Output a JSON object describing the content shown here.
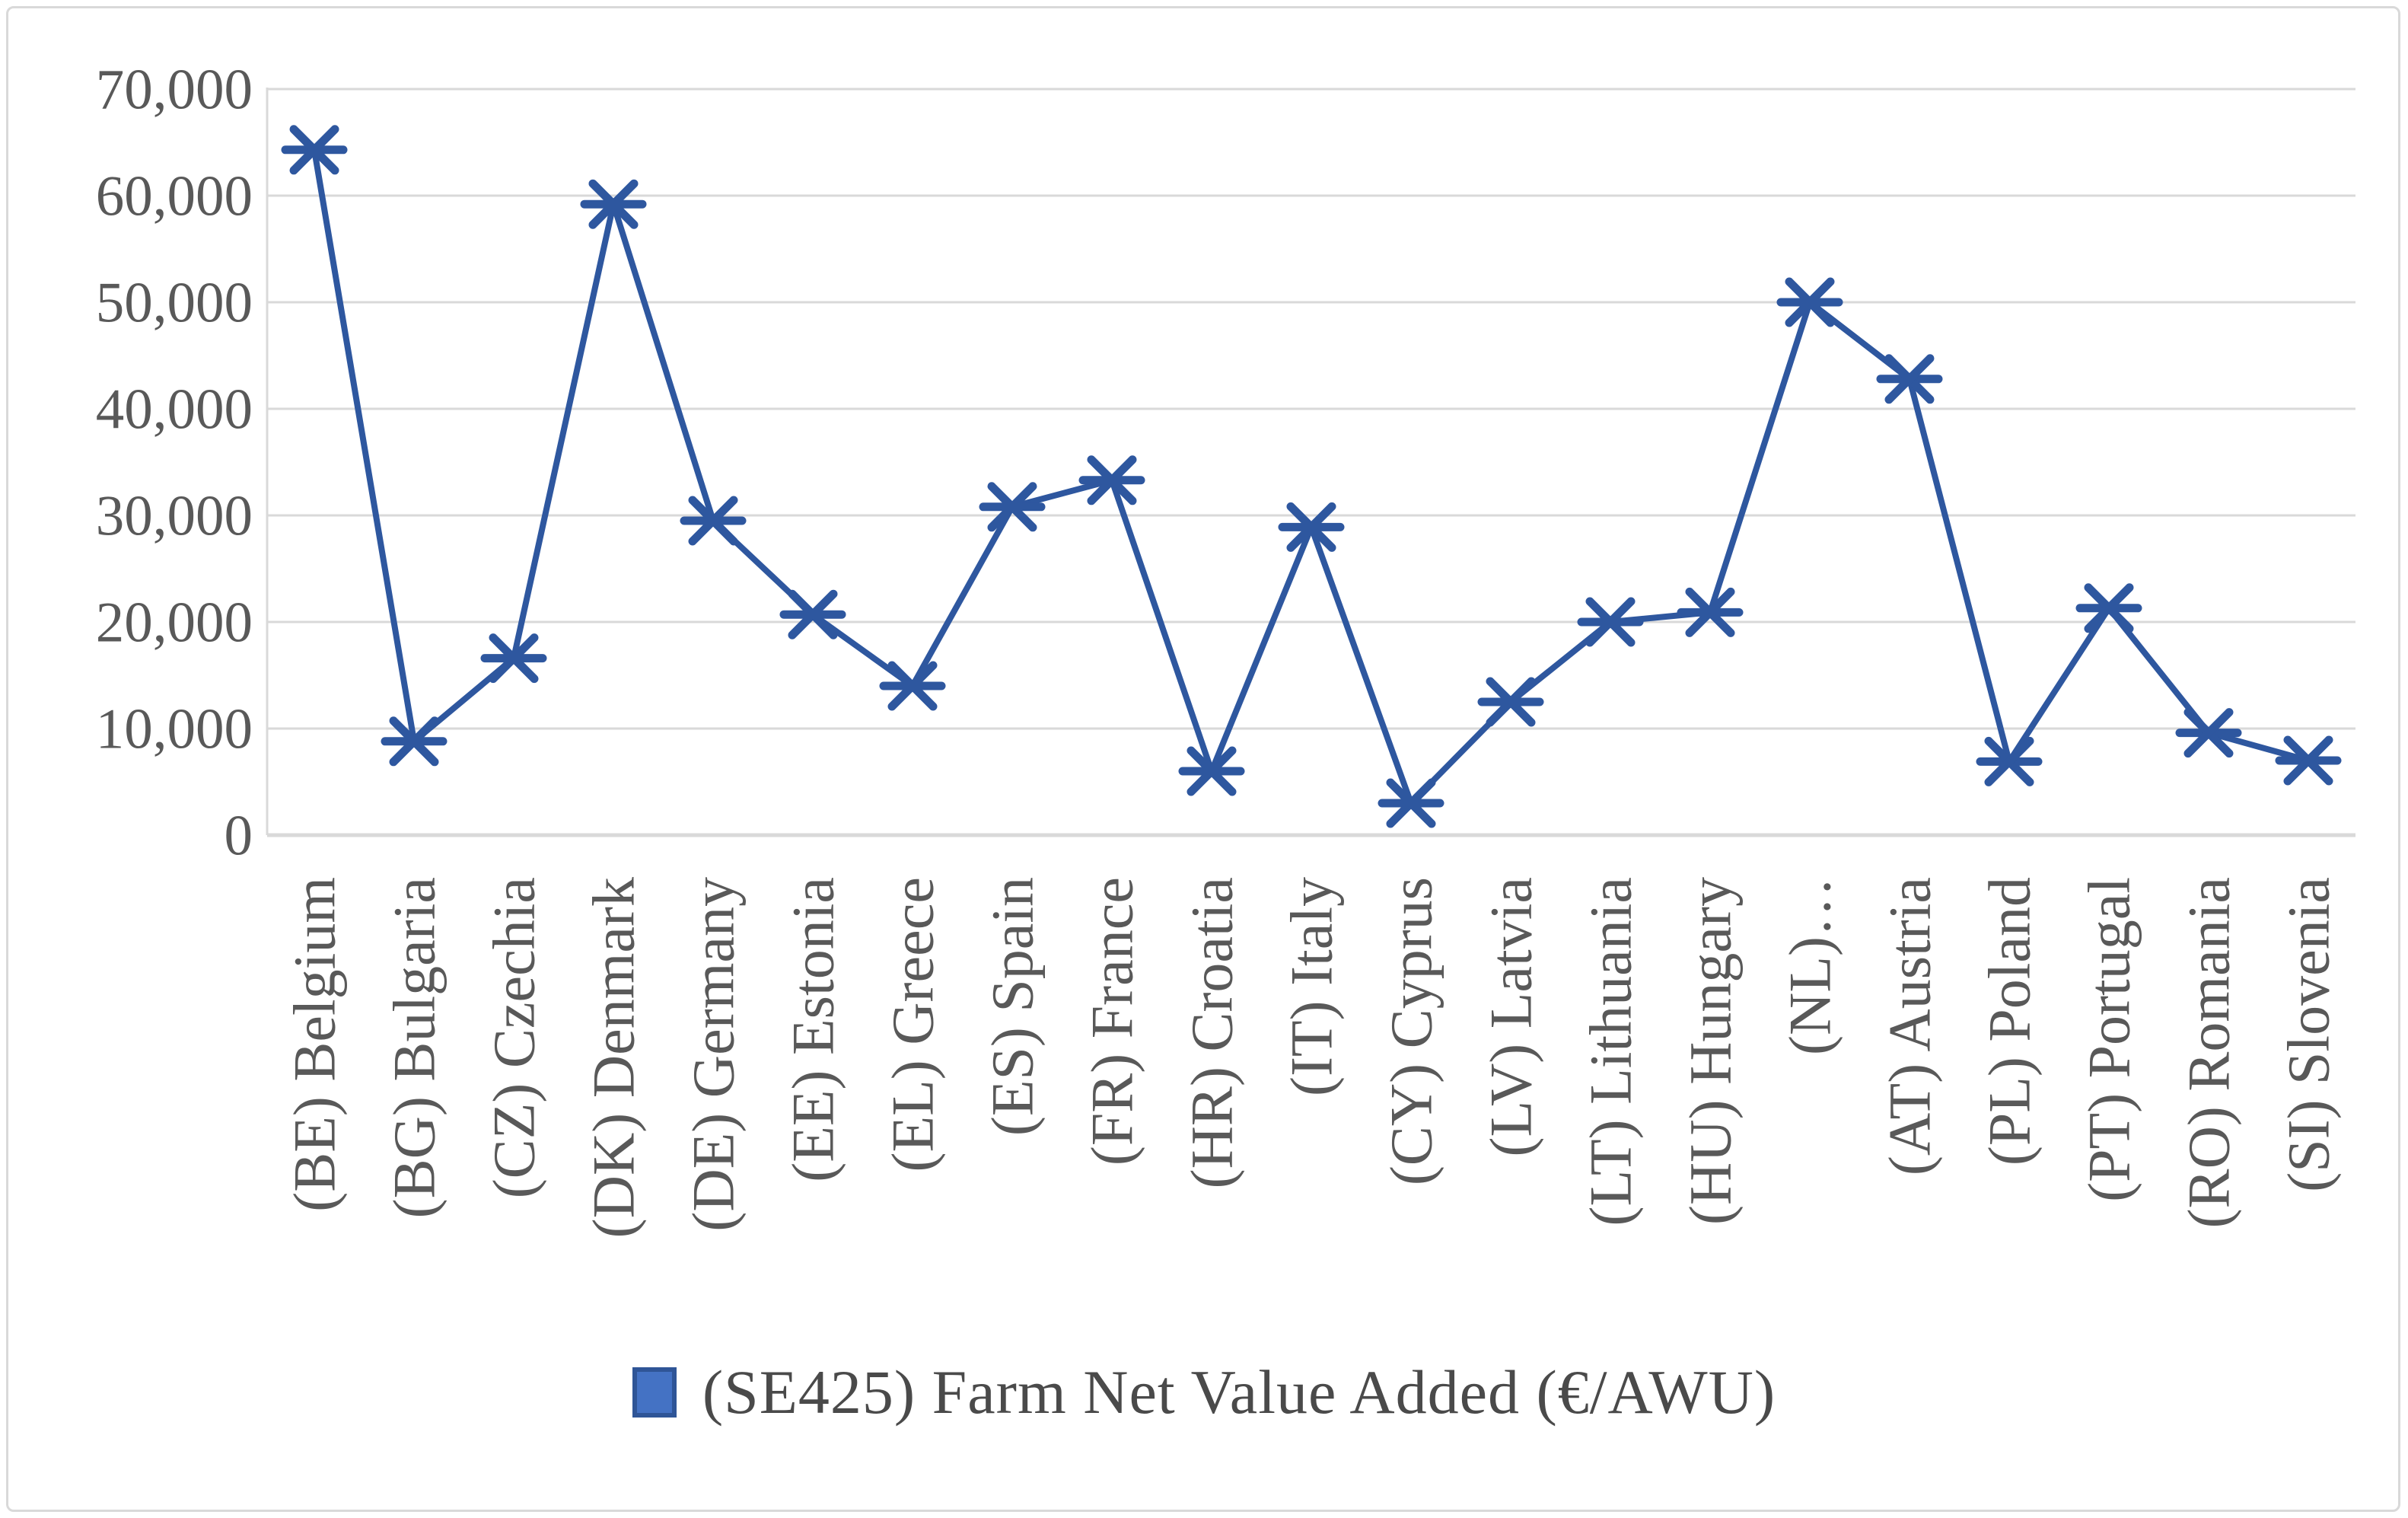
{
  "chart_data": {
    "type": "line",
    "title": "",
    "categories": [
      "(BE) Belgium",
      "(BG) Bulgaria",
      "(CZ) Czechia",
      "(DK) Denmark",
      "(DE) Germany",
      "(EE) Estonia",
      "(EL) Greece",
      "(ES) Spain",
      "(FR) France",
      "(HR) Croatia",
      "(IT) Italy",
      "(CY) Cyprus",
      "(LV) Latvia",
      "(LT) Lithuania",
      "(HU) Hungary",
      "(NL)…",
      "(AT) Austria",
      "(PL) Poland",
      "(PT) Portugal",
      "(RO) Romania",
      "(SI) Slovenia"
    ],
    "series": [
      {
        "name": "(SE425) Farm Net Value Added (€/AWU)",
        "values": [
          64300,
          8800,
          16600,
          59200,
          29500,
          20700,
          14000,
          30800,
          33300,
          6000,
          28900,
          3000,
          12500,
          20000,
          20900,
          50000,
          42800,
          6900,
          21300,
          9600,
          7000
        ]
      }
    ],
    "xlabel": "",
    "ylabel": "",
    "ylim": [
      0,
      70000
    ],
    "ytick_interval": 10000,
    "ytick_labels": [
      "0",
      "10,000",
      "20,000",
      "30,000",
      "40,000",
      "50,000",
      "60,000",
      "70,000"
    ],
    "grid": "horizontal",
    "legend_position": "bottom",
    "marker_shape": "asterisk-horizontal",
    "colors": {
      "line": "#2e579f",
      "marker": "#2e579f",
      "legend_fill": "#4472c4",
      "legend_border": "#2f5597",
      "gridline": "#d9d9d9",
      "axis_text": "#595959",
      "frame_border": "#d9d9d9"
    }
  },
  "legend": {
    "label": "(SE425) Farm Net Value Added (€/AWU)"
  }
}
